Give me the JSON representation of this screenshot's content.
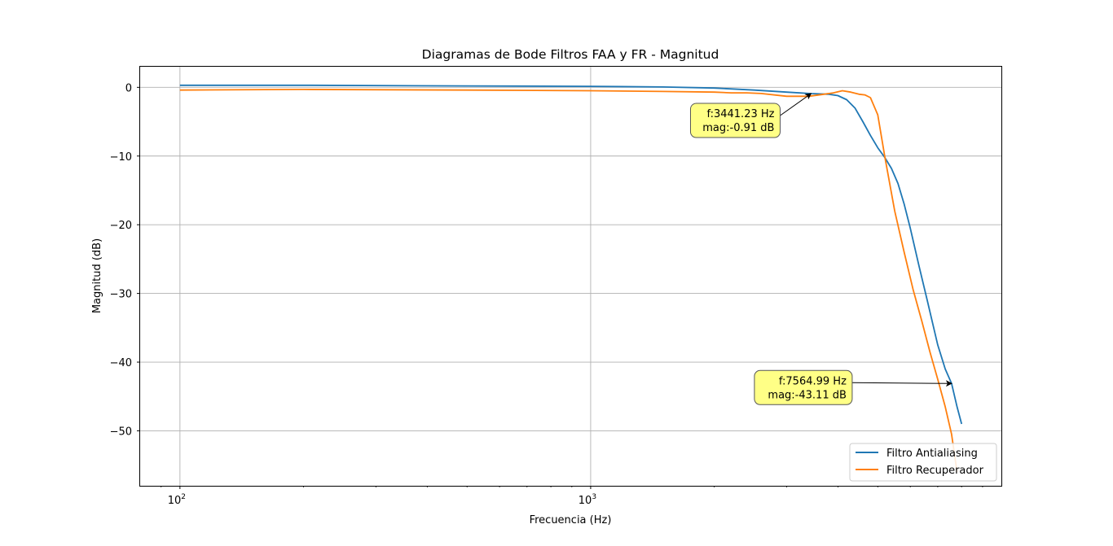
{
  "chart_data": {
    "type": "line",
    "title": "Diagramas de Bode Filtros FAA y FR - Magnitud",
    "xlabel": "Frecuencia (Hz)",
    "ylabel": "Magnitud (dB)",
    "xscale": "log",
    "xlim": [
      80,
      10000
    ],
    "ylim": [
      -58,
      3
    ],
    "grid": true,
    "legend_position": "lower right",
    "x_ticks": [
      {
        "value": 100,
        "base": "10",
        "exp": "2"
      },
      {
        "value": 1000,
        "base": "10",
        "exp": "3"
      }
    ],
    "y_ticks": [
      {
        "value": 0,
        "label": "0"
      },
      {
        "value": -10,
        "label": "−10"
      },
      {
        "value": -20,
        "label": "−20"
      },
      {
        "value": -30,
        "label": "−30"
      },
      {
        "value": -40,
        "label": "−40"
      },
      {
        "value": -50,
        "label": "−50"
      }
    ],
    "series": [
      {
        "name": "Filtro Antialiasing",
        "color": "#1f77b4",
        "x": [
          100,
          200,
          500,
          1000,
          1500,
          2000,
          2500,
          3000,
          3441.23,
          3800,
          4000,
          4200,
          4400,
          4600,
          4800,
          5000,
          5200,
          5400,
          5600,
          5800,
          6000,
          6300,
          6600,
          7000,
          7300,
          7564.99,
          7800,
          8000
        ],
        "y": [
          0.3,
          0.3,
          0.2,
          0.15,
          0.05,
          -0.1,
          -0.4,
          -0.7,
          -0.91,
          -1.0,
          -1.2,
          -1.8,
          -3.0,
          -5.0,
          -7.0,
          -8.8,
          -10.2,
          -11.8,
          -14.0,
          -17.0,
          -20.5,
          -26.0,
          -31.0,
          -37.5,
          -41.0,
          -43.11,
          -46.5,
          -49.0
        ]
      },
      {
        "name": "Filtro Recuperador",
        "color": "#ff7f0e",
        "x": [
          100,
          200,
          500,
          1000,
          1500,
          2000,
          2200,
          2400,
          2600,
          3000,
          3400,
          3700,
          3900,
          4100,
          4300,
          4500,
          4650,
          4800,
          5000,
          5200,
          5500,
          5800,
          6100,
          6400,
          6700,
          7000,
          7300,
          7564.99,
          7800
        ],
        "y": [
          -0.4,
          -0.3,
          -0.4,
          -0.5,
          -0.6,
          -0.7,
          -0.8,
          -0.8,
          -0.9,
          -1.3,
          -1.3,
          -1.0,
          -0.8,
          -0.5,
          -0.7,
          -1.0,
          -1.1,
          -1.5,
          -4.0,
          -10.0,
          -18.0,
          -24.0,
          -29.5,
          -34.0,
          -38.5,
          -42.5,
          -46.5,
          -50.5,
          -56.0
        ]
      }
    ],
    "annotations": [
      {
        "line1": "f:3441.23 Hz",
        "line2": "mag:-0.91 dB",
        "x": 3441.23,
        "y": -0.91
      },
      {
        "line1": "f:7564.99 Hz",
        "line2": "mag:-43.11 dB",
        "x": 7564.99,
        "y": -43.11
      }
    ]
  }
}
